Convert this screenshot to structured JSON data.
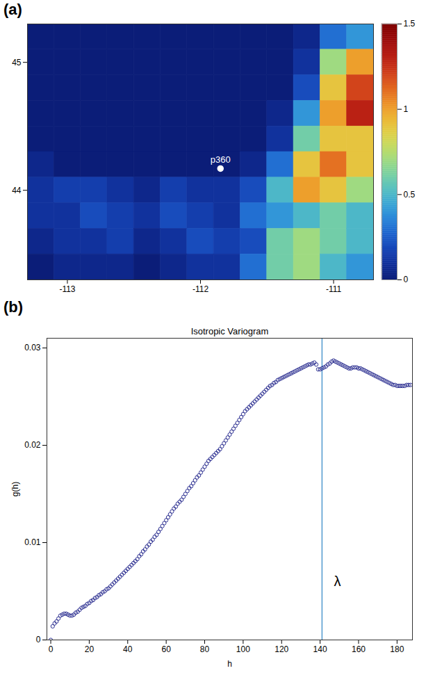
{
  "chart_data": [
    {
      "type": "heatmap",
      "panel_label": "(a)",
      "x": [
        -113.2,
        -113.0,
        -112.8,
        -112.6,
        -112.4,
        -112.2,
        -112.0,
        -111.8,
        -111.6,
        -111.4,
        -111.2,
        -111.0,
        -110.8
      ],
      "y": [
        45.2,
        45.0,
        44.8,
        44.6,
        44.4,
        44.2,
        44.0,
        43.8,
        43.6,
        43.4
      ],
      "cells": [
        [
          0,
          0,
          0,
          0,
          0,
          0,
          0,
          0,
          0,
          0,
          0.05,
          0.3,
          0.4
        ],
        [
          0,
          0,
          0,
          0,
          0,
          0,
          0,
          0,
          0,
          0,
          0.1,
          0.7,
          1.0
        ],
        [
          0,
          0,
          0,
          0,
          0,
          0,
          0,
          0,
          0,
          0,
          0.2,
          0.9,
          1.2
        ],
        [
          0,
          0,
          0,
          0,
          0,
          0,
          0,
          0,
          0,
          0.05,
          0.4,
          1.0,
          1.3
        ],
        [
          0,
          0,
          0,
          0,
          0,
          0,
          0,
          0,
          0,
          0.1,
          0.6,
          0.9,
          0.9
        ],
        [
          0.05,
          0,
          0,
          0,
          0,
          0,
          0,
          0,
          0.05,
          0.3,
          0.9,
          1.1,
          0.9
        ],
        [
          0.1,
          0.15,
          0.15,
          0.1,
          0.05,
          0.15,
          0.1,
          0.1,
          0.2,
          0.5,
          1.0,
          0.9,
          0.7
        ],
        [
          0.1,
          0.1,
          0.2,
          0.15,
          0.1,
          0.2,
          0.15,
          0.1,
          0.3,
          0.4,
          0.5,
          0.6,
          0.5
        ],
        [
          0.05,
          0.1,
          0.1,
          0.15,
          0.05,
          0.1,
          0.2,
          0.15,
          0.2,
          0.6,
          0.7,
          0.6,
          0.5
        ],
        [
          0,
          0.05,
          0.05,
          0.05,
          0,
          0.05,
          0.1,
          0.1,
          0.3,
          0.6,
          0.7,
          0.5,
          0.4
        ]
      ],
      "xlim": [
        -113.3,
        -110.7
      ],
      "ylim": [
        43.3,
        45.3
      ],
      "xticks": [
        -113,
        -112,
        -111
      ],
      "yticks": [
        44,
        45
      ],
      "colorbar": {
        "range": [
          0,
          1.5
        ],
        "ticks": [
          0,
          0.5,
          1,
          1.5
        ]
      },
      "annotations": [
        {
          "text": "p360",
          "x": -111.85,
          "y": 44.17
        }
      ]
    },
    {
      "type": "scatter",
      "panel_label": "(b)",
      "title": "Isotropic Variogram",
      "x_label": "h",
      "y_label": "g(h)",
      "x": [
        0,
        1,
        2,
        3,
        4,
        5,
        6,
        7,
        8,
        9,
        10,
        11,
        12,
        13,
        14,
        15,
        16,
        17,
        18,
        19,
        20,
        21,
        22,
        23,
        24,
        25,
        26,
        27,
        28,
        29,
        30,
        31,
        32,
        33,
        34,
        35,
        36,
        37,
        38,
        39,
        40,
        41,
        42,
        43,
        44,
        45,
        46,
        47,
        48,
        49,
        50,
        51,
        52,
        53,
        54,
        55,
        56,
        57,
        58,
        59,
        60,
        61,
        62,
        63,
        64,
        65,
        66,
        67,
        68,
        69,
        70,
        71,
        72,
        73,
        74,
        75,
        76,
        77,
        78,
        79,
        80,
        81,
        82,
        83,
        84,
        85,
        86,
        87,
        88,
        89,
        90,
        91,
        92,
        93,
        94,
        95,
        96,
        97,
        98,
        99,
        100,
        101,
        102,
        103,
        104,
        105,
        106,
        107,
        108,
        109,
        110,
        111,
        112,
        113,
        114,
        115,
        116,
        117,
        118,
        119,
        120,
        121,
        122,
        123,
        124,
        125,
        126,
        127,
        128,
        129,
        130,
        131,
        132,
        133,
        134,
        135,
        136,
        137,
        138,
        139,
        140,
        141,
        142,
        143,
        144,
        145,
        146,
        147,
        148,
        149,
        150,
        151,
        152,
        153,
        154,
        155,
        156,
        157,
        158,
        159,
        160,
        161,
        162,
        163,
        164,
        165,
        166,
        167,
        168,
        169,
        170,
        171,
        172,
        173,
        174,
        175,
        176,
        177,
        178,
        179,
        180,
        181,
        182,
        183,
        184,
        185,
        186,
        187
      ],
      "values": [
        0,
        0.0014,
        0.0017,
        0.0019,
        0.0022,
        0.0025,
        0.0026,
        0.0027,
        0.0027,
        0.0026,
        0.0025,
        0.0025,
        0.0026,
        0.0028,
        0.0029,
        0.0031,
        0.0033,
        0.0034,
        0.0035,
        0.0037,
        0.0038,
        0.004,
        0.0041,
        0.0043,
        0.0044,
        0.0046,
        0.0047,
        0.0049,
        0.005,
        0.0052,
        0.0053,
        0.0055,
        0.0057,
        0.0059,
        0.0061,
        0.0063,
        0.0065,
        0.0067,
        0.0069,
        0.0071,
        0.0073,
        0.0075,
        0.0077,
        0.0079,
        0.0081,
        0.0083,
        0.0086,
        0.0088,
        0.0091,
        0.0093,
        0.0096,
        0.0098,
        0.0101,
        0.0103,
        0.0106,
        0.0108,
        0.0111,
        0.0114,
        0.0117,
        0.012,
        0.0123,
        0.0126,
        0.0129,
        0.0132,
        0.0135,
        0.0137,
        0.014,
        0.0142,
        0.0144,
        0.0147,
        0.015,
        0.0153,
        0.0156,
        0.0158,
        0.0161,
        0.0164,
        0.0167,
        0.0169,
        0.0172,
        0.0175,
        0.0178,
        0.0181,
        0.0184,
        0.0186,
        0.0188,
        0.019,
        0.0192,
        0.0194,
        0.0196,
        0.0199,
        0.0202,
        0.0205,
        0.0208,
        0.0211,
        0.0214,
        0.0217,
        0.022,
        0.0223,
        0.0226,
        0.0229,
        0.0232,
        0.0235,
        0.0237,
        0.0239,
        0.0241,
        0.0243,
        0.0245,
        0.0247,
        0.0249,
        0.0251,
        0.0253,
        0.0255,
        0.0257,
        0.0259,
        0.0261,
        0.0262,
        0.0264,
        0.0265,
        0.0267,
        0.0268,
        0.0269,
        0.027,
        0.0271,
        0.0272,
        0.0273,
        0.0274,
        0.0275,
        0.0276,
        0.0277,
        0.0278,
        0.0279,
        0.028,
        0.0281,
        0.0282,
        0.0283,
        0.0283,
        0.0284,
        0.0285,
        0.0283,
        0.0278,
        0.0278,
        0.0279,
        0.028,
        0.0281,
        0.0283,
        0.0284,
        0.0286,
        0.0287,
        0.0286,
        0.0285,
        0.0284,
        0.0283,
        0.0282,
        0.0281,
        0.028,
        0.0279,
        0.0279,
        0.028,
        0.028,
        0.028,
        0.0279,
        0.0279,
        0.0278,
        0.0277,
        0.0276,
        0.0275,
        0.0274,
        0.0273,
        0.0272,
        0.0271,
        0.027,
        0.0269,
        0.0268,
        0.0267,
        0.0266,
        0.0265,
        0.0264,
        0.0263,
        0.0262,
        0.0262,
        0.0261,
        0.0261,
        0.0261,
        0.0261,
        0.0261,
        0.0262,
        0.0262,
        0.0262
      ],
      "color": "#2e3192",
      "marker": "circle",
      "xlim": [
        -2,
        188
      ],
      "ylim": [
        0,
        0.031
      ],
      "xticks": [
        0,
        20,
        40,
        60,
        80,
        100,
        120,
        140,
        160,
        180
      ],
      "yticks": [
        0,
        0.01,
        0.02,
        0.03
      ],
      "grid": false,
      "vline": 141,
      "annotations": [
        {
          "text": "λ",
          "x": 149,
          "y": 0.006
        }
      ]
    }
  ]
}
